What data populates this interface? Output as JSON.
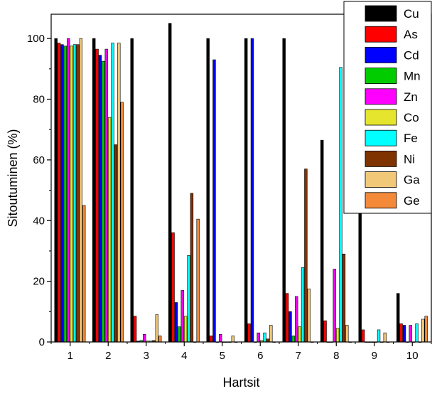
{
  "chart_data": {
    "type": "bar",
    "xlabel": "Hartsit",
    "ylabel": "Sitoutuminen (%)",
    "categories": [
      "1",
      "2",
      "3",
      "4",
      "5",
      "6",
      "7",
      "8",
      "9",
      "10"
    ],
    "ylim": [
      0,
      108
    ],
    "yticks": [
      0,
      20,
      40,
      60,
      80,
      100
    ],
    "legend_position": "top-right",
    "grid": false,
    "series": [
      {
        "name": "Cu",
        "color": "#000000",
        "values": [
          100,
          100,
          100,
          105,
          100,
          100,
          100,
          66.5,
          76,
          16
        ]
      },
      {
        "name": "As",
        "color": "#ff0000",
        "values": [
          98.5,
          96.5,
          8.5,
          36,
          2,
          6,
          16,
          7,
          4,
          6
        ]
      },
      {
        "name": "Cd",
        "color": "#0000ff",
        "values": [
          98,
          94.5,
          0.3,
          13,
          93,
          100,
          10,
          0,
          0,
          5.5
        ]
      },
      {
        "name": "Mn",
        "color": "#00cc00",
        "values": [
          97.5,
          92.5,
          0.5,
          5,
          0,
          0,
          2,
          0,
          0,
          0
        ]
      },
      {
        "name": "Zn",
        "color": "#ff00ff",
        "values": [
          100,
          96.5,
          2.5,
          17,
          2.5,
          3,
          15,
          24,
          0,
          5.5
        ]
      },
      {
        "name": "Co",
        "color": "#e5e52e",
        "values": [
          97.5,
          74,
          0.3,
          8.5,
          0,
          0.5,
          5,
          4.5,
          0,
          0
        ]
      },
      {
        "name": "Fe",
        "color": "#00ffff",
        "values": [
          98,
          98.5,
          0.3,
          28.5,
          0,
          3,
          24.5,
          90.5,
          4,
          6
        ]
      },
      {
        "name": "Ni",
        "color": "#7f3300",
        "values": [
          98,
          65,
          0.5,
          49,
          0,
          1,
          57,
          29,
          0,
          0
        ]
      },
      {
        "name": "Ga",
        "color": "#f0c878",
        "values": [
          100,
          98.5,
          9,
          0,
          2,
          5.5,
          17.5,
          5.5,
          3,
          7.5
        ]
      },
      {
        "name": "Ge",
        "color": "#f4893a",
        "values": [
          45,
          79,
          2,
          40.5,
          0,
          0,
          0,
          0,
          0,
          8.5
        ]
      }
    ]
  }
}
